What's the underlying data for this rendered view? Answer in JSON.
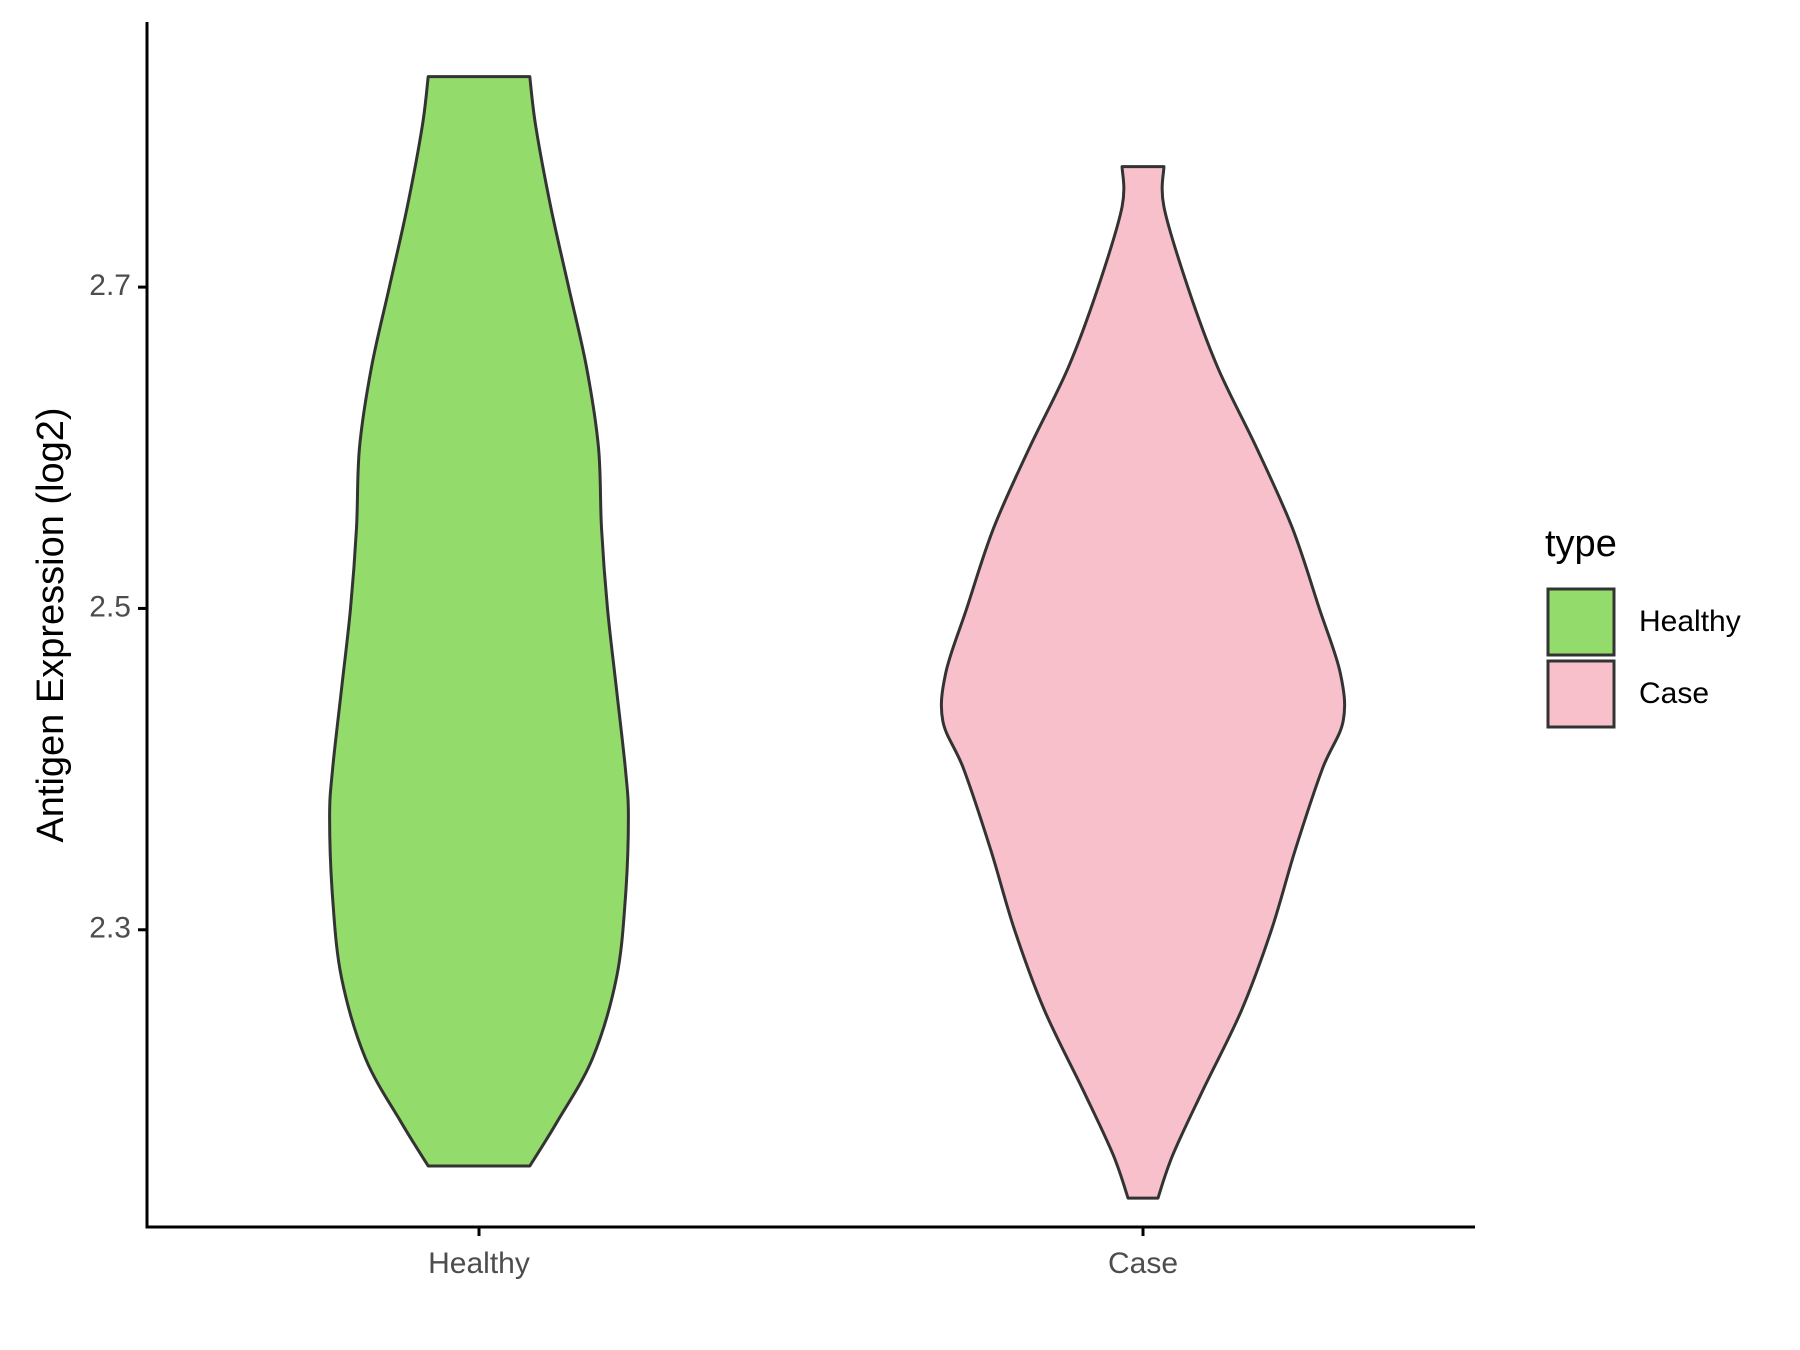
{
  "chart_data": {
    "type": "violin",
    "title": "",
    "xlabel": "",
    "ylabel": "Antigen Expression (log2)",
    "categories": [
      "Healthy",
      "Case"
    ],
    "yticks": [
      "2.3",
      "2.5",
      "2.7"
    ],
    "ytick_values": [
      2.3,
      2.5,
      2.7
    ],
    "ylim": [
      2.115,
      2.865
    ],
    "grid": false,
    "legend": {
      "title": "type",
      "position": "right",
      "entries": [
        {
          "label": "Healthy",
          "color": "#93dc6b"
        },
        {
          "label": "Case",
          "color": "#f7c0cb"
        }
      ]
    },
    "series": [
      {
        "category": "Healthy",
        "color": "#93dc6b",
        "y_min": 2.153,
        "y_max": 2.831,
        "profile": [
          [
            2.153,
            0.17
          ],
          [
            2.18,
            0.26
          ],
          [
            2.22,
            0.38
          ],
          [
            2.27,
            0.46
          ],
          [
            2.32,
            0.49
          ],
          [
            2.37,
            0.5
          ],
          [
            2.4,
            0.49
          ],
          [
            2.45,
            0.46
          ],
          [
            2.5,
            0.43
          ],
          [
            2.55,
            0.41
          ],
          [
            2.6,
            0.4
          ],
          [
            2.65,
            0.36
          ],
          [
            2.7,
            0.3
          ],
          [
            2.75,
            0.24
          ],
          [
            2.8,
            0.19
          ],
          [
            2.831,
            0.17
          ]
        ]
      },
      {
        "category": "Case",
        "color": "#f7c0cb",
        "y_min": 2.133,
        "y_max": 2.775,
        "profile": [
          [
            2.133,
            0.05
          ],
          [
            2.16,
            0.1
          ],
          [
            2.2,
            0.2
          ],
          [
            2.25,
            0.33
          ],
          [
            2.3,
            0.43
          ],
          [
            2.35,
            0.51
          ],
          [
            2.4,
            0.6
          ],
          [
            2.43,
            0.67
          ],
          [
            2.46,
            0.66
          ],
          [
            2.5,
            0.59
          ],
          [
            2.55,
            0.5
          ],
          [
            2.6,
            0.38
          ],
          [
            2.65,
            0.25
          ],
          [
            2.7,
            0.15
          ],
          [
            2.75,
            0.07
          ],
          [
            2.775,
            0.07
          ]
        ]
      }
    ]
  }
}
